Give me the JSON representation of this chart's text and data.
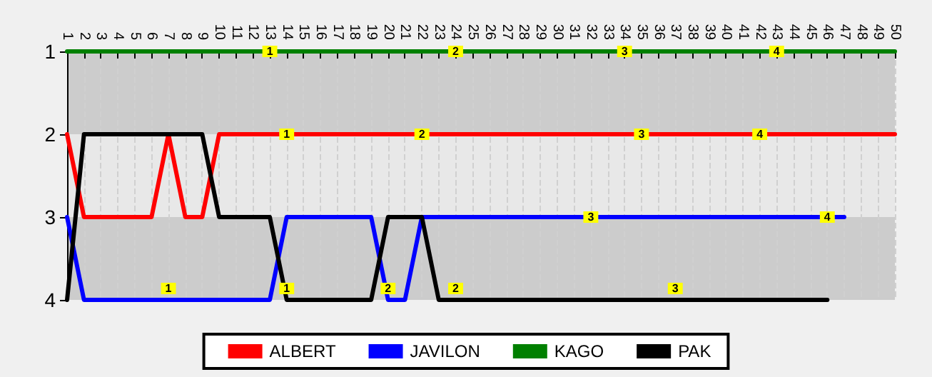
{
  "chart_data": {
    "type": "line",
    "categories": [
      "1",
      "2",
      "3",
      "4",
      "5",
      "6",
      "7",
      "8",
      "9",
      "10",
      "11",
      "12",
      "13",
      "14",
      "15",
      "16",
      "17",
      "18",
      "19",
      "20",
      "21",
      "22",
      "23",
      "24",
      "25",
      "26",
      "27",
      "28",
      "29",
      "30",
      "31",
      "32",
      "33",
      "34",
      "35",
      "36",
      "37",
      "38",
      "39",
      "40",
      "41",
      "42",
      "43",
      "44",
      "45",
      "46",
      "47",
      "48",
      "49",
      "50"
    ],
    "series": [
      {
        "name": "ALBERT",
        "color": "#ff0000",
        "values": [
          2,
          3,
          3,
          3,
          3,
          3,
          2,
          3,
          3,
          2,
          2,
          2,
          2,
          2,
          2,
          2,
          2,
          2,
          2,
          2,
          2,
          2,
          2,
          2,
          2,
          2,
          2,
          2,
          2,
          2,
          2,
          2,
          2,
          2,
          2,
          2,
          2,
          2,
          2,
          2,
          2,
          2,
          2,
          2,
          2,
          2,
          2,
          2,
          2,
          2
        ]
      },
      {
        "name": "JAVILON",
        "color": "#0000ff",
        "values": [
          3,
          4,
          4,
          4,
          4,
          4,
          4,
          4,
          4,
          4,
          4,
          4,
          4,
          3,
          3,
          3,
          3,
          3,
          3,
          4,
          4,
          3,
          3,
          3,
          3,
          3,
          3,
          3,
          3,
          3,
          3,
          3,
          3,
          3,
          3,
          3,
          3,
          3,
          3,
          3,
          3,
          3,
          3,
          3,
          3,
          3,
          3,
          null,
          null,
          null
        ]
      },
      {
        "name": "KAGO",
        "color": "#008000",
        "values": [
          1,
          1,
          1,
          1,
          1,
          1,
          1,
          1,
          1,
          1,
          1,
          1,
          1,
          1,
          1,
          1,
          1,
          1,
          1,
          1,
          1,
          1,
          1,
          1,
          1,
          1,
          1,
          1,
          1,
          1,
          1,
          1,
          1,
          1,
          1,
          1,
          1,
          1,
          1,
          1,
          1,
          1,
          1,
          1,
          1,
          1,
          1,
          1,
          1,
          1
        ]
      },
      {
        "name": "PAK",
        "color": "#000000",
        "values": [
          4,
          2,
          2,
          2,
          2,
          2,
          2,
          2,
          2,
          3,
          3,
          3,
          3,
          4,
          4,
          4,
          4,
          4,
          4,
          3,
          3,
          3,
          4,
          4,
          4,
          4,
          4,
          4,
          4,
          4,
          4,
          4,
          4,
          4,
          4,
          4,
          4,
          4,
          4,
          4,
          4,
          4,
          4,
          4,
          4,
          4,
          null,
          null,
          null,
          null
        ]
      }
    ],
    "ylim": [
      4,
      1
    ],
    "yticks": [
      1,
      2,
      3,
      4
    ],
    "grid": "x",
    "legend": "bottom",
    "marker": "none",
    "line_style": "solid",
    "annotations": [
      {
        "text": "1",
        "x": "13",
        "y": 1
      },
      {
        "text": "2",
        "x": "24",
        "y": 1
      },
      {
        "text": "3",
        "x": "34",
        "y": 1
      },
      {
        "text": "4",
        "x": "43",
        "y": 1
      },
      {
        "text": "1",
        "x": "14",
        "y": 2
      },
      {
        "text": "2",
        "x": "22",
        "y": 2
      },
      {
        "text": "3",
        "x": "35",
        "y": 2
      },
      {
        "text": "4",
        "x": "42",
        "y": 2
      },
      {
        "text": "3",
        "x": "32",
        "y": 3
      },
      {
        "text": "4",
        "x": "46",
        "y": 3
      },
      {
        "text": "1",
        "x": "7",
        "y": 4
      },
      {
        "text": "1",
        "x": "14",
        "y": 4
      },
      {
        "text": "2",
        "x": "20",
        "y": 4
      },
      {
        "text": "2",
        "x": "24",
        "y": 4
      },
      {
        "text": "3",
        "x": "37",
        "y": 4
      }
    ]
  }
}
